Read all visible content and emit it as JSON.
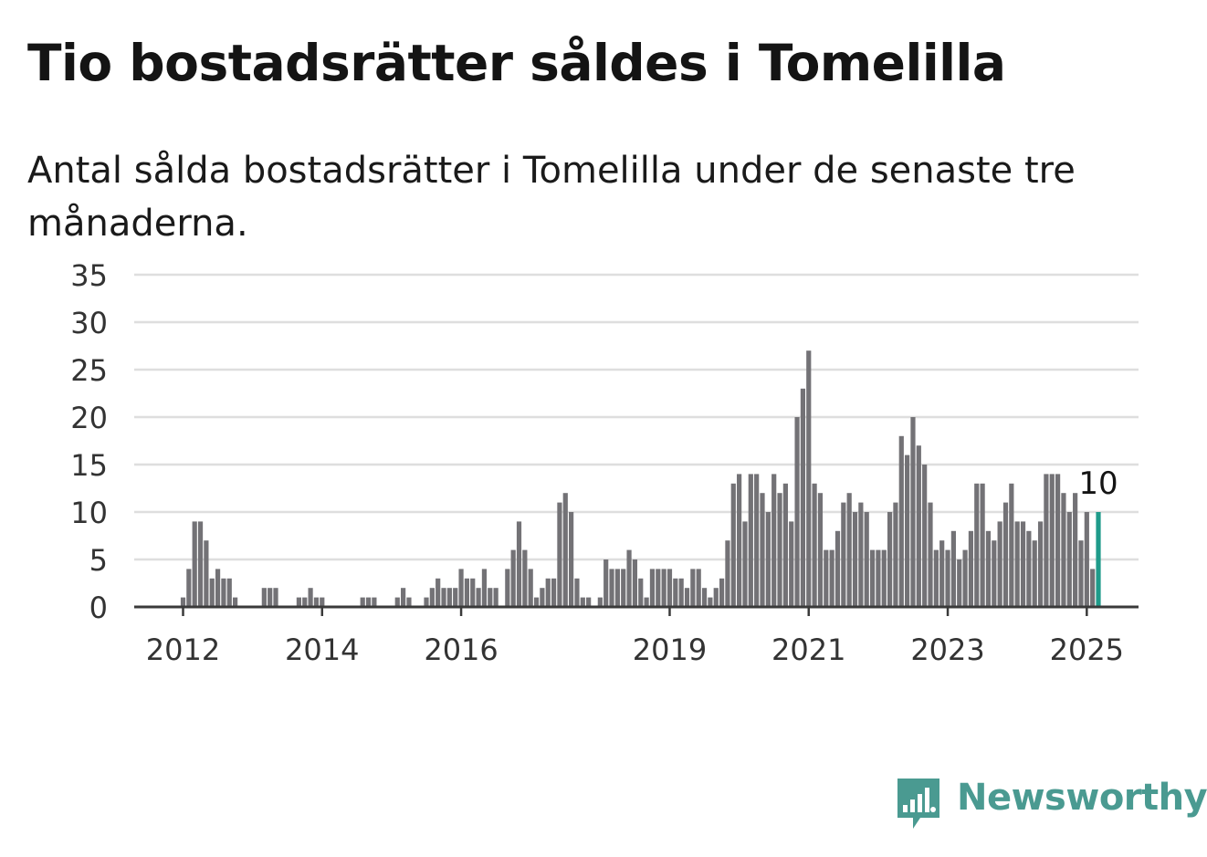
{
  "title": "Tio bostadsrätter såldes i Tomelilla",
  "subtitle": "Antal sålda bostadsrätter i Tomelilla under de senaste tre månaderna.",
  "brand": {
    "name": "Newsworthy",
    "color": "#4a9a91",
    "icon": "newsworthy-logo-icon"
  },
  "chart_data": {
    "type": "bar",
    "frequency": "monthly",
    "start": "2012-01",
    "end": "2025-01",
    "x_tick_labels": [
      "2012",
      "2014",
      "2016",
      "2019",
      "2021",
      "2023",
      "2025"
    ],
    "y_tick_labels": [
      "0",
      "5",
      "10",
      "15",
      "20",
      "25",
      "30",
      "35"
    ],
    "ylim": [
      0,
      35
    ],
    "grid": true,
    "bar_color": "#737276",
    "highlight_color": "#1f9b8a",
    "highlight_label": "10",
    "values": [
      1,
      4,
      9,
      9,
      7,
      3,
      4,
      3,
      3,
      1,
      0,
      0,
      0,
      0,
      2,
      2,
      2,
      0,
      0,
      0,
      1,
      1,
      2,
      1,
      1,
      0,
      0,
      0,
      0,
      0,
      0,
      1,
      1,
      1,
      0,
      0,
      0,
      1,
      2,
      1,
      0,
      0,
      1,
      2,
      3,
      2,
      2,
      2,
      4,
      3,
      3,
      2,
      4,
      2,
      2,
      0,
      4,
      6,
      9,
      6,
      4,
      1,
      2,
      3,
      3,
      11,
      12,
      10,
      3,
      1,
      1,
      0,
      1,
      5,
      4,
      4,
      4,
      6,
      5,
      3,
      1,
      4,
      4,
      4,
      4,
      3,
      3,
      2,
      4,
      4,
      2,
      1,
      2,
      3,
      7,
      13,
      14,
      9,
      14,
      14,
      12,
      10,
      14,
      12,
      13,
      9,
      20,
      23,
      27,
      13,
      12,
      6,
      6,
      8,
      11,
      12,
      10,
      11,
      10,
      6,
      6,
      6,
      10,
      11,
      18,
      16,
      20,
      17,
      15,
      11,
      6,
      7,
      6,
      8,
      5,
      6,
      8,
      13,
      13,
      8,
      7,
      9,
      11,
      13,
      9,
      9,
      8,
      7,
      9,
      14,
      14,
      14,
      12,
      10,
      12,
      7,
      10,
      4,
      10
    ]
  }
}
